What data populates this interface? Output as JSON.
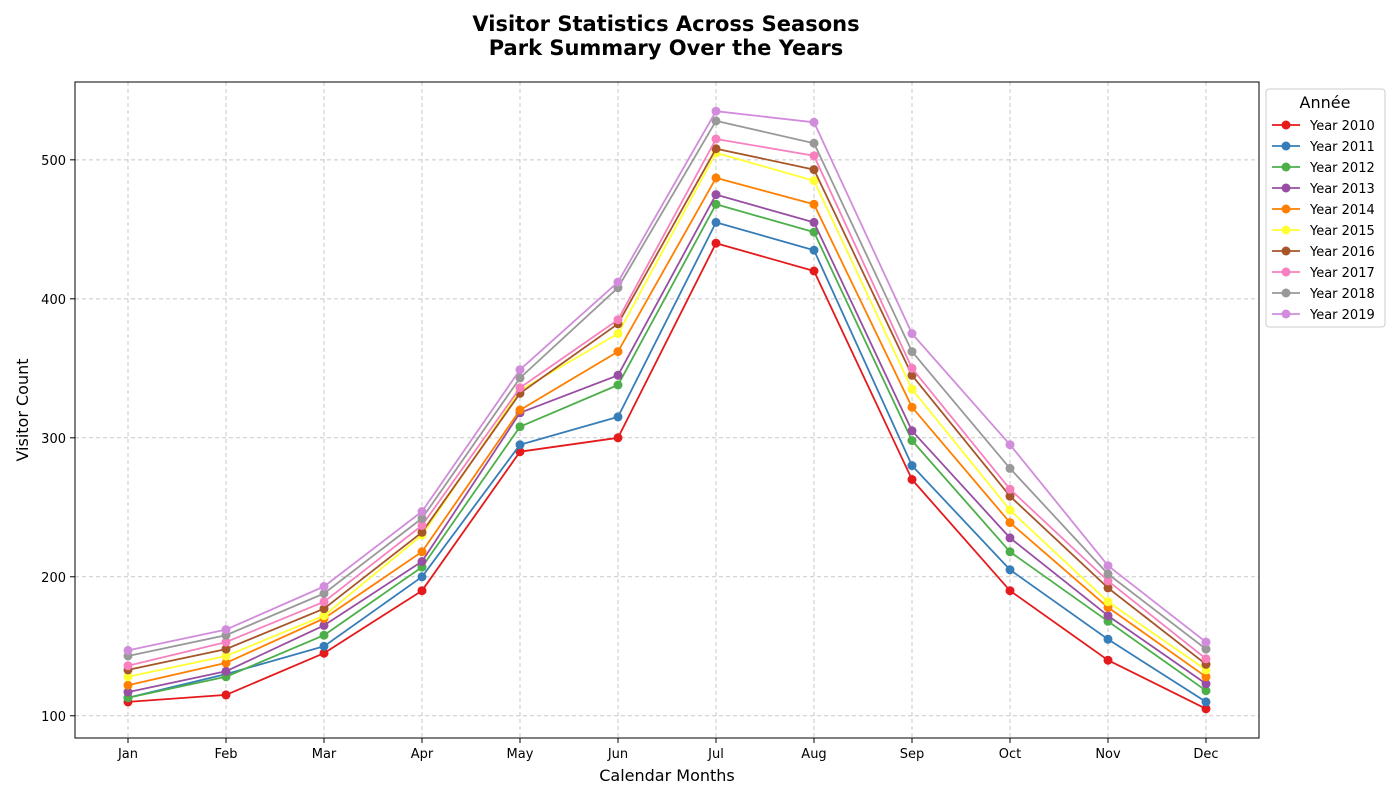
{
  "chart_data": {
    "type": "line",
    "title": "Visitor Statistics Across Seasons",
    "subtitle": "Park Summary Over the Years",
    "xlabel": "Calendar Months",
    "ylabel": "Visitor Count",
    "categories": [
      "Jan",
      "Feb",
      "Mar",
      "Apr",
      "May",
      "Jun",
      "Jul",
      "Aug",
      "Sep",
      "Oct",
      "Nov",
      "Dec"
    ],
    "ylim": [
      84,
      556
    ],
    "yticks": [
      100,
      200,
      300,
      400,
      500
    ],
    "grid": true,
    "legend": {
      "title": "Année",
      "placement": "outside-top-right"
    },
    "series": [
      {
        "name": "Year 2010",
        "color": "#e41a1c",
        "values": [
          110,
          115,
          145,
          190,
          290,
          300,
          440,
          420,
          270,
          190,
          140,
          105
        ]
      },
      {
        "name": "Year 2011",
        "color": "#377eb8",
        "values": [
          113,
          130,
          150,
          200,
          295,
          315,
          455,
          435,
          280,
          205,
          155,
          110
        ]
      },
      {
        "name": "Year 2012",
        "color": "#4daf4a",
        "values": [
          113,
          128,
          158,
          207,
          308,
          338,
          468,
          448,
          298,
          218,
          168,
          118
        ]
      },
      {
        "name": "Year 2013",
        "color": "#984ea3",
        "values": [
          117,
          132,
          165,
          211,
          318,
          345,
          475,
          455,
          305,
          228,
          172,
          123
        ]
      },
      {
        "name": "Year 2014",
        "color": "#ff7f00",
        "values": [
          122,
          138,
          170,
          218,
          320,
          362,
          487,
          468,
          322,
          239,
          178,
          128
        ]
      },
      {
        "name": "Year 2015",
        "color": "#ffff33",
        "values": [
          128,
          143,
          172,
          230,
          334,
          375,
          505,
          485,
          335,
          248,
          182,
          133
        ]
      },
      {
        "name": "Year 2016",
        "color": "#a65628",
        "values": [
          133,
          148,
          177,
          232,
          332,
          382,
          508,
          493,
          345,
          258,
          192,
          137
        ]
      },
      {
        "name": "Year 2017",
        "color": "#f781bf",
        "values": [
          136,
          153,
          182,
          237,
          336,
          385,
          515,
          503,
          350,
          263,
          197,
          141
        ]
      },
      {
        "name": "Year 2018",
        "color": "#999999",
        "values": [
          143,
          158,
          188,
          242,
          343,
          408,
          528,
          512,
          362,
          278,
          202,
          148
        ]
      },
      {
        "name": "Year 2019",
        "color": "#d18ddb",
        "values": [
          147,
          162,
          193,
          247,
          349,
          412,
          535,
          527,
          375,
          295,
          208,
          153
        ]
      }
    ]
  }
}
